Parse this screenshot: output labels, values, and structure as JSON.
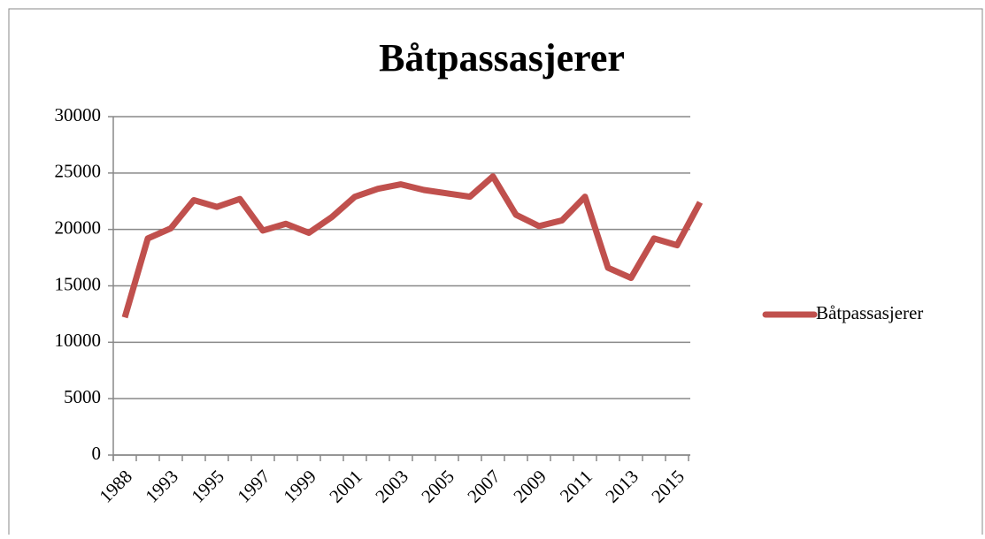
{
  "chart_data": {
    "type": "line",
    "title": "Båtpassasjerer",
    "categories": [
      "1988",
      null,
      "1993",
      null,
      "1995",
      null,
      "1997",
      null,
      "1999",
      null,
      "2001",
      null,
      "2003",
      null,
      "2005",
      null,
      "2007",
      null,
      "2009",
      null,
      "2011",
      null,
      "2013",
      null,
      "2015",
      null
    ],
    "series": [
      {
        "name": "Båtpassasjerer",
        "color": "#c0504d",
        "values": [
          12200,
          19200,
          20100,
          22600,
          22000,
          22700,
          19900,
          20500,
          19700,
          21100,
          22900,
          23600,
          24000,
          23500,
          23200,
          22900,
          24700,
          21300,
          20300,
          20800,
          22900,
          16600,
          15700,
          19200,
          18600,
          22400
        ]
      }
    ],
    "ylim": [
      0,
      30000
    ],
    "yticks": [
      0,
      5000,
      10000,
      15000,
      20000,
      25000,
      30000
    ],
    "grid": true,
    "legend": "right"
  }
}
